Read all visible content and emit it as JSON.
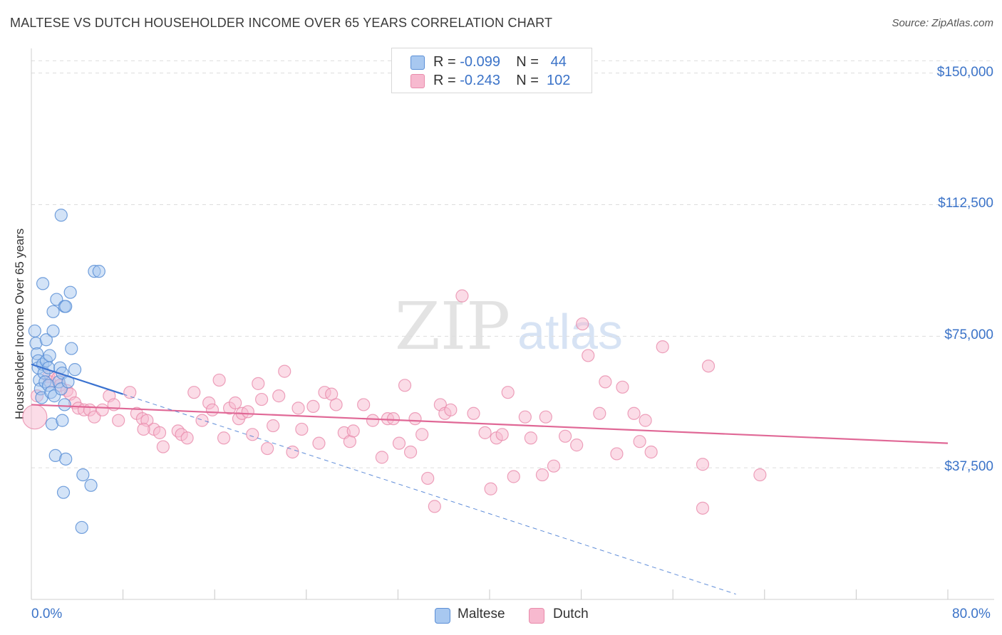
{
  "title": "MALTESE VS DUTCH HOUSEHOLDER INCOME OVER 65 YEARS CORRELATION CHART",
  "source": "Source: ZipAtlas.com",
  "watermark": {
    "zip": "ZIP",
    "atlas": "atlas"
  },
  "colors": {
    "maltese_fill": "#a8c8f0",
    "maltese_stroke": "#5b8fd6",
    "maltese_line": "#3a72d0",
    "dutch_fill": "#f7b9cf",
    "dutch_stroke": "#e98bab",
    "dutch_line": "#e06896",
    "axis_label": "#3b73c8",
    "grid": "#dddddd"
  },
  "legend": {
    "maltese": {
      "r_label": "R = ",
      "r_value": "-0.099",
      "n_label": "N = ",
      "n_value": "44"
    },
    "dutch": {
      "r_label": "R = ",
      "r_value": "-0.243",
      "n_label": "N = ",
      "n_value": "102"
    }
  },
  "chart_data": {
    "type": "scatter",
    "title": "MALTESE VS DUTCH HOUSEHOLDER INCOME OVER 65 YEARS CORRELATION CHART",
    "xlabel": "",
    "ylabel": "Householder Income Over 65 years",
    "xlim": [
      0,
      80
    ],
    "ylim": [
      0,
      155000
    ],
    "x_tick_labels": [
      "0.0%",
      "80.0%"
    ],
    "y_ticks": [
      37500,
      75000,
      112500,
      150000
    ],
    "y_tick_labels": [
      "$37,500",
      "$75,000",
      "$112,500",
      "$150,000"
    ],
    "legend_position": "top-center",
    "series": [
      {
        "name": "Maltese",
        "R": -0.099,
        "N": 44,
        "trend": {
          "x": [
            0,
            8
          ],
          "y": [
            67000,
            58500
          ],
          "extended_x": [
            8,
            61.5
          ],
          "extended_y": [
            58500,
            1500
          ]
        },
        "points": [
          [
            0.3,
            76.5
          ],
          [
            0.4,
            73
          ],
          [
            0.5,
            70
          ],
          [
            0.6,
            68
          ],
          [
            0.6,
            66
          ],
          [
            0.7,
            62.5
          ],
          [
            0.8,
            60
          ],
          [
            0.9,
            57.5
          ],
          [
            1.0,
            67
          ],
          [
            1.1,
            64.5
          ],
          [
            1.2,
            62
          ],
          [
            1.3,
            68
          ],
          [
            1.3,
            74
          ],
          [
            1.5,
            66
          ],
          [
            1.5,
            61
          ],
          [
            1.6,
            69.5
          ],
          [
            1.7,
            59
          ],
          [
            1.8,
            50
          ],
          [
            1.9,
            82
          ],
          [
            1.9,
            76.5
          ],
          [
            2.0,
            58
          ],
          [
            2.1,
            41
          ],
          [
            2.2,
            85.5
          ],
          [
            2.4,
            62
          ],
          [
            2.5,
            66
          ],
          [
            2.6,
            109.5
          ],
          [
            2.6,
            60
          ],
          [
            2.7,
            51
          ],
          [
            2.8,
            30.5
          ],
          [
            2.9,
            55.5
          ],
          [
            2.9,
            83.5
          ],
          [
            2.7,
            64.5
          ],
          [
            3.0,
            83.5
          ],
          [
            3.0,
            40
          ],
          [
            3.2,
            62
          ],
          [
            3.4,
            87.5
          ],
          [
            3.5,
            71.5
          ],
          [
            3.8,
            65.5
          ],
          [
            4.4,
            20.5
          ],
          [
            4.5,
            35.5
          ],
          [
            5.2,
            32.5
          ],
          [
            5.5,
            93.5
          ],
          [
            5.9,
            93.5
          ],
          [
            1.0,
            90
          ]
        ]
      },
      {
        "name": "Dutch",
        "R": -0.243,
        "N": 102,
        "trend": {
          "x": [
            0,
            80
          ],
          "y": [
            55500,
            44500
          ]
        },
        "points": [
          [
            0.3,
            52
          ],
          [
            1.5,
            63.5
          ],
          [
            1.6,
            62
          ],
          [
            2.3,
            63
          ],
          [
            2.5,
            61
          ],
          [
            3.1,
            59.5
          ],
          [
            3.4,
            58.5
          ],
          [
            3.8,
            56
          ],
          [
            4.1,
            54.5
          ],
          [
            4.6,
            54
          ],
          [
            5.1,
            54
          ],
          [
            5.5,
            52
          ],
          [
            6.2,
            54
          ],
          [
            6.8,
            58
          ],
          [
            7.2,
            55.5
          ],
          [
            7.6,
            51
          ],
          [
            8.6,
            59
          ],
          [
            9.2,
            53
          ],
          [
            9.7,
            51.5
          ],
          [
            10.1,
            51
          ],
          [
            10.7,
            48.5
          ],
          [
            11.2,
            47.5
          ],
          [
            11.5,
            43.5
          ],
          [
            12.8,
            48
          ],
          [
            13.1,
            47
          ],
          [
            13.6,
            46
          ],
          [
            14.2,
            59
          ],
          [
            14.9,
            51
          ],
          [
            15.5,
            56
          ],
          [
            15.8,
            54
          ],
          [
            16.4,
            62.5
          ],
          [
            16.8,
            46
          ],
          [
            17.3,
            54.5
          ],
          [
            17.8,
            56
          ],
          [
            18.1,
            51.5
          ],
          [
            18.4,
            53
          ],
          [
            18.9,
            53.5
          ],
          [
            19.3,
            47
          ],
          [
            19.8,
            61.5
          ],
          [
            20.1,
            57
          ],
          [
            20.6,
            43
          ],
          [
            21.1,
            49.5
          ],
          [
            21.6,
            58
          ],
          [
            22.1,
            65
          ],
          [
            22.8,
            42
          ],
          [
            23.3,
            54.5
          ],
          [
            23.6,
            48.5
          ],
          [
            24.6,
            55
          ],
          [
            25.1,
            44.5
          ],
          [
            25.6,
            59
          ],
          [
            26.2,
            58.5
          ],
          [
            26.6,
            55.5
          ],
          [
            27.3,
            47.5
          ],
          [
            27.8,
            45
          ],
          [
            28.1,
            48
          ],
          [
            29.0,
            55.5
          ],
          [
            29.8,
            51
          ],
          [
            30.6,
            40.5
          ],
          [
            31.1,
            51.5
          ],
          [
            31.6,
            51.5
          ],
          [
            32.1,
            44.5
          ],
          [
            32.6,
            61
          ],
          [
            33.1,
            42
          ],
          [
            34.1,
            47
          ],
          [
            34.6,
            34.5
          ],
          [
            35.2,
            26.5
          ],
          [
            35.7,
            55.5
          ],
          [
            36.1,
            53
          ],
          [
            36.6,
            54
          ],
          [
            37.6,
            86.5
          ],
          [
            38.6,
            53
          ],
          [
            39.6,
            47.5
          ],
          [
            40.1,
            31.5
          ],
          [
            40.6,
            46
          ],
          [
            41.1,
            47
          ],
          [
            41.6,
            59
          ],
          [
            42.1,
            35
          ],
          [
            43.1,
            52
          ],
          [
            43.6,
            46
          ],
          [
            44.6,
            35.5
          ],
          [
            44.9,
            52
          ],
          [
            45.6,
            38
          ],
          [
            46.6,
            46.5
          ],
          [
            47.6,
            44
          ],
          [
            48.1,
            78.5
          ],
          [
            48.6,
            69.5
          ],
          [
            49.6,
            53
          ],
          [
            50.1,
            62
          ],
          [
            51.1,
            41.5
          ],
          [
            51.6,
            60.5
          ],
          [
            52.6,
            53
          ],
          [
            53.1,
            45
          ],
          [
            53.6,
            51
          ],
          [
            54.1,
            42
          ],
          [
            55.1,
            72
          ],
          [
            58.6,
            26
          ],
          [
            58.6,
            38.5
          ],
          [
            59.1,
            66.5
          ],
          [
            63.6,
            35.5
          ],
          [
            0.5,
            58
          ],
          [
            33.5,
            51.5
          ],
          [
            9.8,
            48.5
          ]
        ]
      }
    ]
  },
  "bottom_legend": {
    "maltese": "Maltese",
    "dutch": "Dutch"
  }
}
